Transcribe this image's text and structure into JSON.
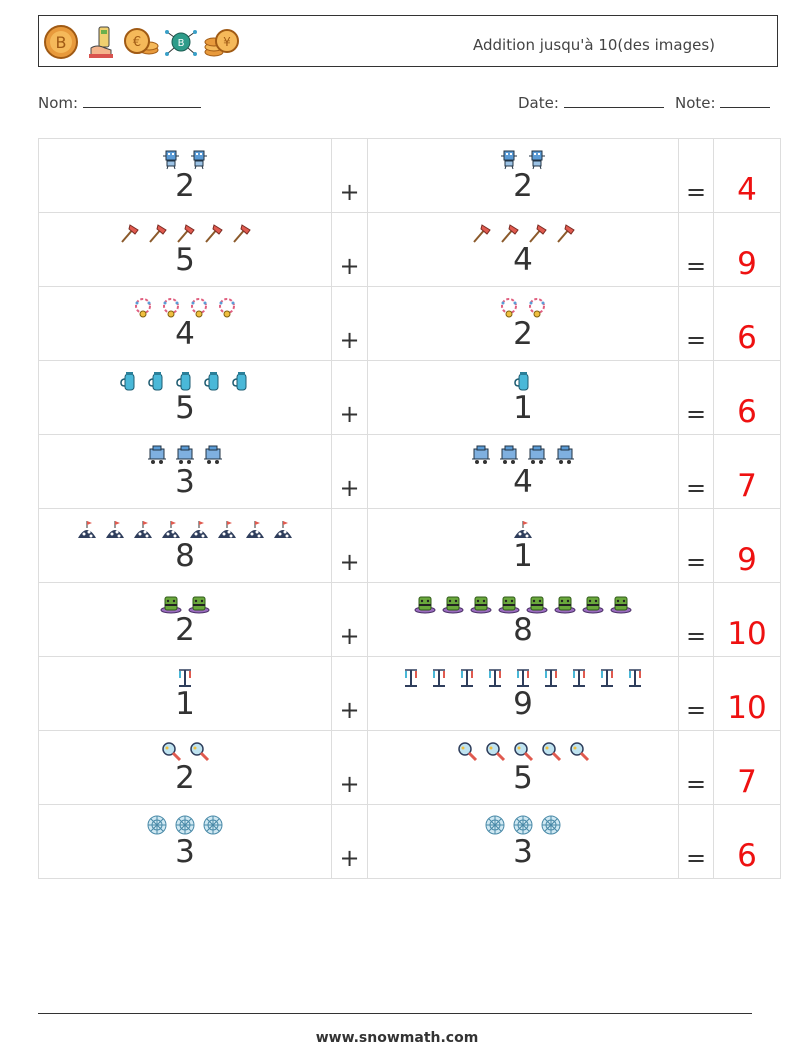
{
  "header": {
    "title": "Addition jusqu'à 10(des images)",
    "icons": [
      "bitcoin-coin-icon",
      "hand-card-icon",
      "euro-coins-icon",
      "bitcoin-network-icon",
      "yen-coins-icon"
    ]
  },
  "meta": {
    "name_label": "Nom:",
    "date_label": "Date:",
    "note_label": "Note:"
  },
  "symbols": {
    "plus": "+",
    "equals": "="
  },
  "rows": [
    {
      "a": "2",
      "b": "2",
      "sum": "4",
      "icon": "robot-icon"
    },
    {
      "a": "5",
      "b": "4",
      "sum": "9",
      "icon": "axe-icon"
    },
    {
      "a": "4",
      "b": "2",
      "sum": "6",
      "icon": "necklace-icon"
    },
    {
      "a": "5",
      "b": "1",
      "sum": "6",
      "icon": "thermos-icon"
    },
    {
      "a": "3",
      "b": "4",
      "sum": "7",
      "icon": "cart-icon"
    },
    {
      "a": "8",
      "b": "1",
      "sum": "9",
      "icon": "igloo-icon"
    },
    {
      "a": "2",
      "b": "8",
      "sum": "10",
      "icon": "hat-icon"
    },
    {
      "a": "1",
      "b": "9",
      "sum": "10",
      "icon": "stand-icon"
    },
    {
      "a": "2",
      "b": "5",
      "sum": "7",
      "icon": "magnifier-icon"
    },
    {
      "a": "3",
      "b": "3",
      "sum": "6",
      "icon": "snowflake-icon"
    }
  ],
  "footer": {
    "url": "www.snowmath.com"
  },
  "colors": {
    "answer": "#ee1111",
    "text": "#333333"
  }
}
